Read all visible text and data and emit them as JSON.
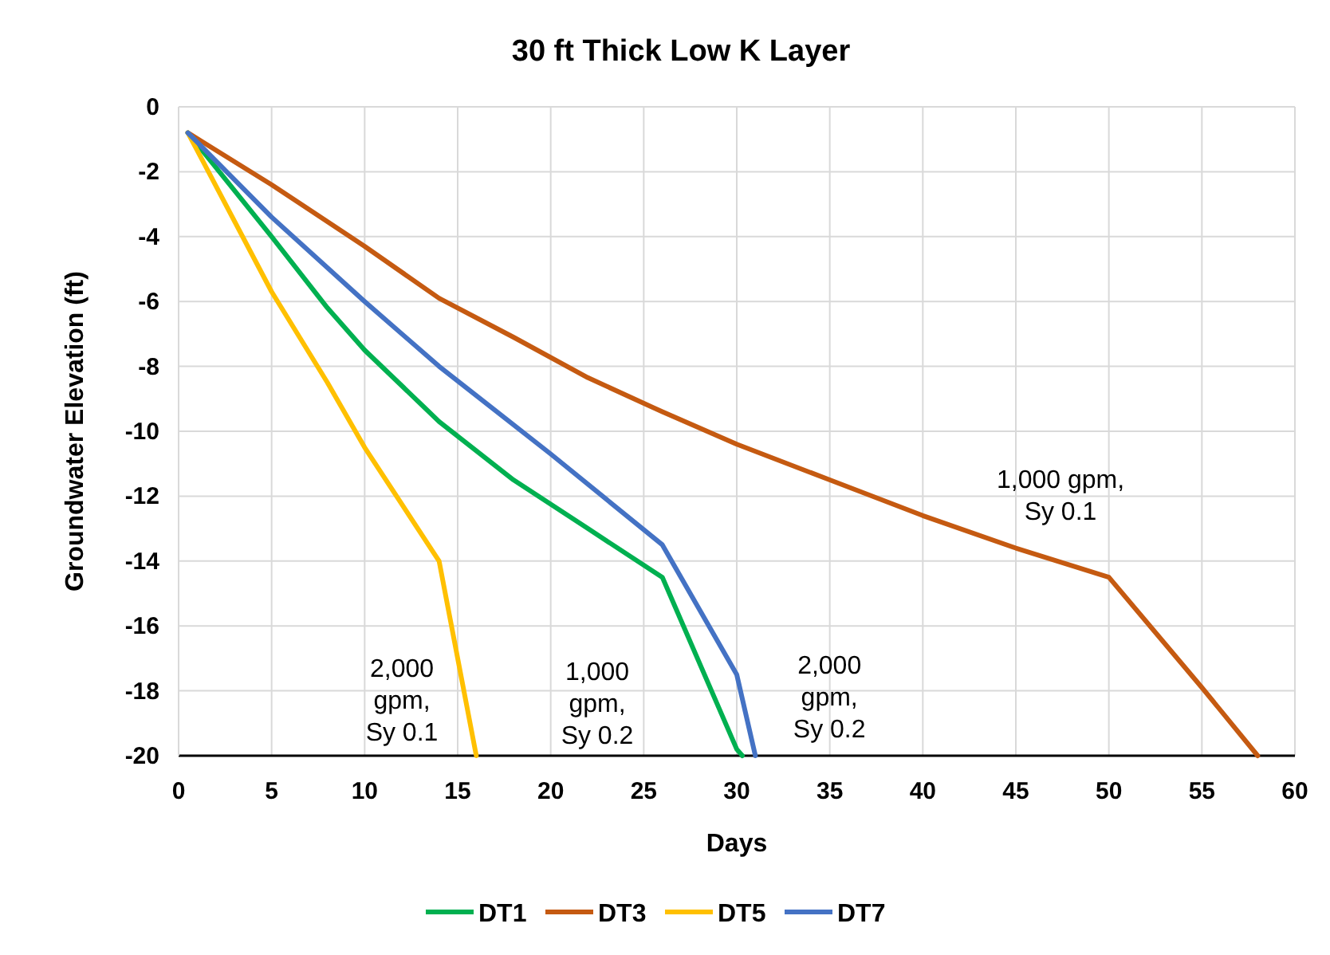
{
  "chart_data": {
    "type": "line",
    "title": "30 ft Thick Low K Layer",
    "xlabel": "Days",
    "ylabel": "Groundwater Elevation (ft)",
    "xlim": [
      0,
      60
    ],
    "xticks": [
      0,
      5,
      10,
      15,
      20,
      25,
      30,
      35,
      40,
      45,
      50,
      55,
      60
    ],
    "ylim": [
      -20,
      0
    ],
    "yticks": [
      -20,
      -18,
      -16,
      -14,
      -12,
      -10,
      -8,
      -6,
      -4,
      -2,
      0
    ],
    "grid": true,
    "legend": "bottom",
    "marker": "none",
    "line_style": "solid",
    "series": [
      {
        "name": "DT1",
        "color": "#00b050",
        "x": [
          0.5,
          5,
          8,
          10,
          14,
          18,
          22,
          26,
          30,
          30.3
        ],
        "values": [
          -0.8,
          -4,
          -6.2,
          -7.5,
          -9.7,
          -11.5,
          -13,
          -14.5,
          -19.8,
          -20
        ]
      },
      {
        "name": "DT3",
        "color": "#c55a11",
        "x": [
          0.5,
          5,
          10,
          14,
          18,
          22,
          26,
          30,
          35,
          40,
          45,
          50,
          55,
          58
        ],
        "values": [
          -0.8,
          -2.4,
          -4.3,
          -5.9,
          -7.1,
          -8.35,
          -9.4,
          -10.4,
          -11.5,
          -12.6,
          -13.6,
          -14.5,
          -17.9,
          -20
        ]
      },
      {
        "name": "DT5",
        "color": "#ffc000",
        "x": [
          0.5,
          5,
          8,
          10,
          14,
          16
        ],
        "values": [
          -0.8,
          -5.7,
          -8.5,
          -10.5,
          -14,
          -20
        ]
      },
      {
        "name": "DT7",
        "color": "#4472c4",
        "x": [
          0.5,
          5,
          10,
          14,
          20,
          26,
          30,
          31
        ],
        "values": [
          -0.8,
          -3.4,
          -6,
          -8,
          -10.7,
          -13.5,
          -17.5,
          -20
        ]
      }
    ],
    "annotations": [
      "1,000 gpm,\nSy 0.1",
      "2,000\ngpm,\nSy 0.1",
      "1,000\ngpm,\nSy 0.2",
      "2,000\ngpm,\nSy 0.2"
    ]
  }
}
